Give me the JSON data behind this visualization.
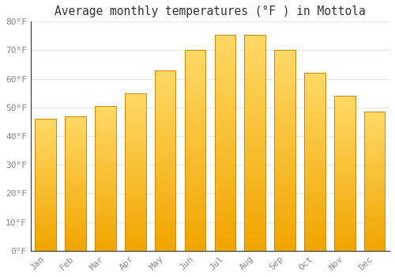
{
  "title": "Average monthly temperatures (°F ) in Mottola",
  "months": [
    "Jan",
    "Feb",
    "Mar",
    "Apr",
    "May",
    "Jun",
    "Jul",
    "Aug",
    "Sep",
    "Oct",
    "Nov",
    "Dec"
  ],
  "values": [
    46,
    47,
    50.5,
    55,
    63,
    70,
    75.5,
    75.5,
    70,
    62,
    54,
    48.5
  ],
  "bar_color_top": "#FFD966",
  "bar_color_bottom": "#F0A500",
  "bar_edge_color": "#C8880A",
  "ylim": [
    0,
    80
  ],
  "yticks": [
    0,
    10,
    20,
    30,
    40,
    50,
    60,
    70,
    80
  ],
  "ytick_labels": [
    "0°F",
    "10°F",
    "20°F",
    "30°F",
    "40°F",
    "50°F",
    "60°F",
    "70°F",
    "80°F"
  ],
  "background_color": "#FFFFFF",
  "grid_color": "#E8E8E8",
  "title_fontsize": 10.5,
  "tick_fontsize": 8,
  "tick_color": "#888888",
  "bar_width": 0.7,
  "n_gradient_steps": 100
}
